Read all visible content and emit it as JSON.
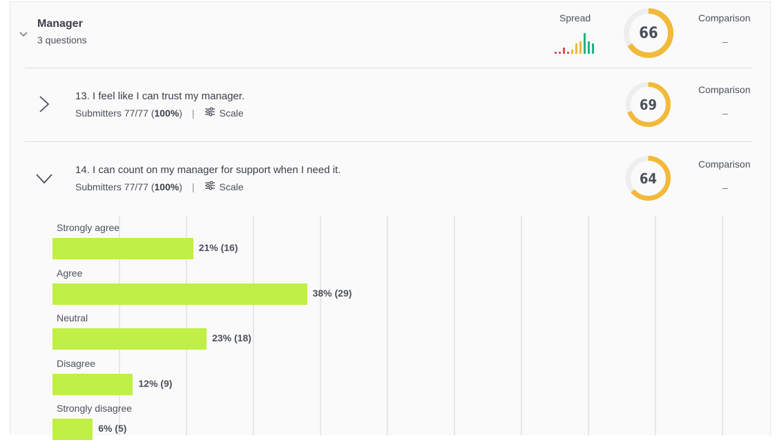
{
  "section": {
    "title": "Manager",
    "subtitle": "3 questions",
    "spread_label": "Spread",
    "score": "66",
    "score_fraction": 0.66,
    "comparison_label": "Comparison",
    "comparison_value": "–",
    "spread_colors": [
      "#e04a55",
      "#e04a55",
      "#e04a55",
      "#e04a55",
      "#f0b73a",
      "#f0b73a",
      "#f0b73a",
      "#20b486",
      "#20b486",
      "#20b486"
    ],
    "spread_values": [
      1,
      1,
      3,
      1,
      2,
      5,
      6,
      10,
      6,
      5
    ]
  },
  "questions": [
    {
      "title": "13. I feel like I can trust my manager.",
      "submitters_prefix": "Submitters 77/77 (",
      "submitters_pct": "100%",
      "submitters_suffix": ")",
      "type_label": "Scale",
      "score": "69",
      "score_fraction": 0.69,
      "comparison_label": "Comparison",
      "comparison_value": "–"
    },
    {
      "title": "14. I can count on my manager for support when I need it.",
      "submitters_prefix": "Submitters 77/77 (",
      "submitters_pct": "100%",
      "submitters_suffix": ")",
      "type_label": "Scale",
      "score": "64",
      "score_fraction": 0.64,
      "comparison_label": "Comparison",
      "comparison_value": "–"
    }
  ],
  "chart_data": {
    "type": "bar",
    "categories": [
      "Strongly agree",
      "Agree",
      "Neutral",
      "Disagree",
      "Strongly disagree"
    ],
    "values": [
      21,
      38,
      23,
      12,
      6
    ],
    "counts": [
      16,
      29,
      18,
      9,
      5
    ],
    "labels": [
      "21% (16)",
      "38% (29)",
      "23% (18)",
      "12% (9)",
      "6% (5)"
    ],
    "xlim": [
      0,
      100
    ],
    "grid": true,
    "bar_color": "#c0ef45"
  },
  "colors": {
    "gauge_fill": "#f2b93b",
    "gauge_track": "#eeeeee"
  }
}
